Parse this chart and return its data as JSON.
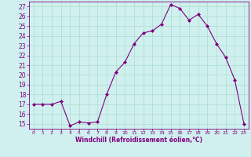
{
  "x": [
    0,
    1,
    2,
    3,
    4,
    5,
    6,
    7,
    8,
    9,
    10,
    11,
    12,
    13,
    14,
    15,
    16,
    17,
    18,
    19,
    20,
    21,
    22,
    23
  ],
  "y": [
    17.0,
    17.0,
    17.0,
    17.3,
    14.8,
    15.2,
    15.1,
    15.2,
    18.0,
    20.3,
    21.3,
    23.2,
    24.3,
    24.5,
    25.2,
    27.2,
    26.8,
    25.6,
    26.2,
    25.0,
    23.2,
    21.8,
    19.5,
    15.0
  ],
  "xlim": [
    -0.5,
    23.5
  ],
  "ylim": [
    14.5,
    27.5
  ],
  "yticks": [
    15,
    16,
    17,
    18,
    19,
    20,
    21,
    22,
    23,
    24,
    25,
    26,
    27
  ],
  "xticks": [
    0,
    1,
    2,
    3,
    4,
    5,
    6,
    7,
    8,
    9,
    10,
    11,
    12,
    13,
    14,
    15,
    16,
    17,
    18,
    19,
    20,
    21,
    22,
    23
  ],
  "xlabel": "Windchill (Refroidissement éolien,°C)",
  "line_color": "#800080",
  "marker": "D",
  "marker_size": 2.0,
  "bg_color": "#cff0ee",
  "grid_color": "#aaddcc",
  "tick_color": "#800080",
  "label_color": "#800080",
  "xlabel_fontsize": 5.5,
  "ytick_fontsize": 5.5,
  "xtick_fontsize": 4.5
}
